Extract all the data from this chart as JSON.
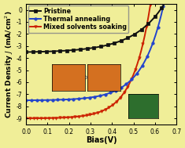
{
  "title": "",
  "xlabel": "Bias(V)",
  "ylabel": "Current Density $J$ (mA/cm$^2$)",
  "xlim": [
    0.0,
    0.7
  ],
  "ylim": [
    -9.5,
    0.5
  ],
  "yticks": [
    0,
    -1,
    -2,
    -3,
    -4,
    -5,
    -6,
    -7,
    -8,
    -9
  ],
  "xticks": [
    0.0,
    0.1,
    0.2,
    0.3,
    0.4,
    0.5,
    0.6,
    0.7
  ],
  "background_color": "#f0ee98",
  "legend_labels": [
    "Pristine",
    "Thermal annealing",
    "Mixed solvents soaking"
  ],
  "line_colors": [
    "#111111",
    "#2244cc",
    "#cc2200"
  ],
  "line_markers": [
    "s",
    "o",
    "v"
  ],
  "curves": {
    "pristine": {
      "Jsc": -3.5,
      "Voc": 0.625,
      "n": 5.5
    },
    "thermal": {
      "Jsc": -7.5,
      "Voc": 0.635,
      "n": 3.8
    },
    "mixed": {
      "Jsc": -9.0,
      "Voc": 0.575,
      "n": 3.2
    }
  },
  "marker_sizes": [
    2.5,
    2.5,
    2.5
  ],
  "markevery": [
    18,
    14,
    10
  ],
  "linewidths": [
    1.4,
    1.4,
    1.4
  ],
  "font_size": 7,
  "tick_size": 5.5
}
